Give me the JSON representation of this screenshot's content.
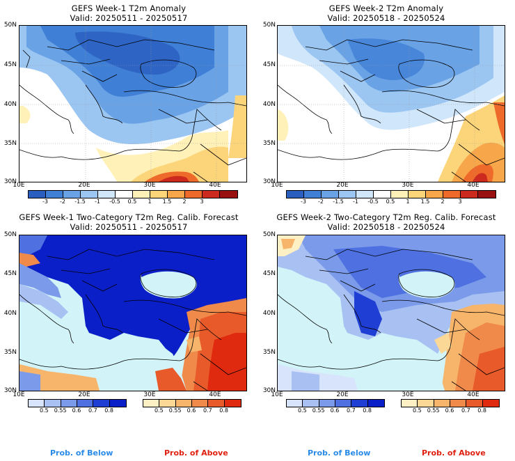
{
  "panels": [
    {
      "title_line1": "GEFS Week-1 T2m Anomaly",
      "title_line2": "Valid: 20250511 - 20250517"
    },
    {
      "title_line1": "GEFS Week-2 T2m Anomaly",
      "title_line2": "Valid: 20250518 - 20250524"
    },
    {
      "title_line1": "GEFS Week-1 Two-Category T2m Reg. Calib. Forecast",
      "title_line2": "Valid: 20250511 - 20250517"
    },
    {
      "title_line1": "GEFS Week-2 Two-Category T2m Reg. Calib. Forecast",
      "title_line2": "Valid: 20250518 - 20250524"
    }
  ],
  "lat_labels": [
    "50N",
    "45N",
    "40N",
    "35N",
    "30N"
  ],
  "lon_labels": [
    "10E",
    "20E",
    "30E",
    "40E"
  ],
  "anomaly_colorbar": {
    "labels": [
      "-3",
      "-2",
      "-1.5",
      "-1",
      "-0.5",
      "0.5",
      "1",
      "1.5",
      "2",
      "3"
    ],
    "colors": [
      "#2a5fbf",
      "#3f7fd6",
      "#6aa2e6",
      "#9cc6f2",
      "#cfe6fb",
      "#ffffff",
      "#fff1b8",
      "#fcd57a",
      "#f7a64a",
      "#ee6a2a",
      "#cc2a1e",
      "#981010"
    ]
  },
  "prob_below": {
    "labels": [
      "0.5",
      "0.55",
      "0.6",
      "0.7",
      "0.8"
    ],
    "colors": [
      "#d8e4fb",
      "#a9c1f2",
      "#7b9bea",
      "#4e70e0",
      "#1f3ed4",
      "#0a1fc8"
    ]
  },
  "prob_above": {
    "labels": [
      "0.5",
      "0.55",
      "0.6",
      "0.7",
      "0.8"
    ],
    "colors": [
      "#fdf0c4",
      "#fbd896",
      "#f7b56c",
      "#f08a4a",
      "#e85a2a",
      "#e02a10"
    ]
  },
  "legend": {
    "below": "Prob. of Below",
    "above": "Prob. of Above",
    "below_color": "#2a8ae8",
    "above_color": "#e02010"
  },
  "colors": {
    "sea": "#d2f4f8",
    "land_white": "#ffffff"
  }
}
